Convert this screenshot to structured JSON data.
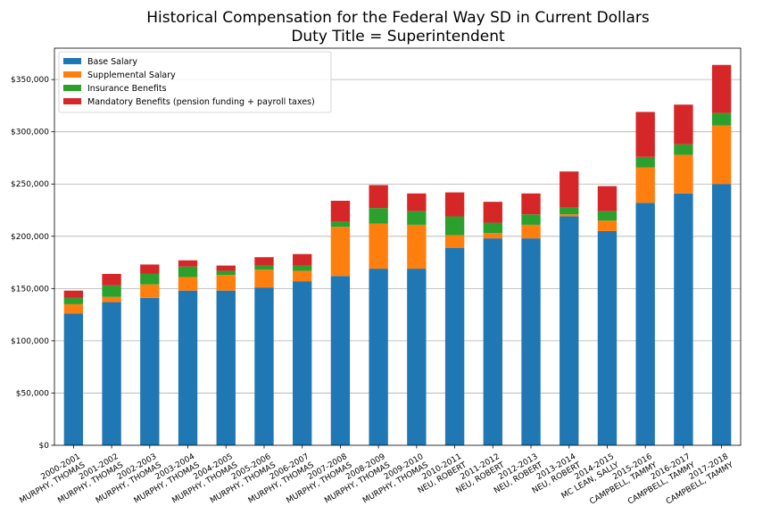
{
  "chart_data": {
    "type": "bar",
    "stacked": true,
    "title": "Historical Compensation for the Federal Way SD in Current Dollars",
    "subtitle": "Duty Title = Superintendent",
    "xlabel": "",
    "ylabel": "",
    "ylim": [
      0,
      380000
    ],
    "yticks": [
      0,
      50000,
      100000,
      150000,
      200000,
      250000,
      300000,
      350000
    ],
    "ytick_labels": [
      "$0",
      "$50,000",
      "$100,000",
      "$150,000",
      "$200,000",
      "$250,000",
      "$300,000",
      "$350,000"
    ],
    "grid": "horizontal",
    "legend_position": "top-left",
    "categories": [
      [
        "2000-2001",
        "MURPHY, THOMAS"
      ],
      [
        "2001-2002",
        "MURPHY, THOMAS"
      ],
      [
        "2002-2003",
        "MURPHY, THOMAS"
      ],
      [
        "2003-2004",
        "MURPHY, THOMAS"
      ],
      [
        "2004-2005",
        "MURPHY, THOMAS"
      ],
      [
        "2005-2006",
        "MURPHY, THOMAS"
      ],
      [
        "2006-2007",
        "MURPHY, THOMAS"
      ],
      [
        "2007-2008",
        "MURPHY, THOMAS"
      ],
      [
        "2008-2009",
        "MURPHY, THOMAS"
      ],
      [
        "2009-2010",
        "MURPHY, THOMAS"
      ],
      [
        "2010-2011",
        "NEU, ROBERT"
      ],
      [
        "2011-2012",
        "NEU, ROBERT"
      ],
      [
        "2012-2013",
        "NEU, ROBERT"
      ],
      [
        "2013-2014",
        "NEU, ROBERT"
      ],
      [
        "2014-2015",
        "MC LEAN, SALLY"
      ],
      [
        "2015-2016",
        "CAMPBELL, TAMMY"
      ],
      [
        "2016-2017",
        "CAMPBELL, TAMMY"
      ],
      [
        "2017-2018",
        "CAMPBELL, TAMMY"
      ]
    ],
    "series": [
      {
        "name": "Base Salary",
        "color": "#1f77b4",
        "values": [
          126000,
          137000,
          141000,
          148000,
          148000,
          151000,
          157000,
          162000,
          169000,
          169000,
          189000,
          198000,
          198000,
          219000,
          205000,
          232000,
          241000,
          250000
        ]
      },
      {
        "name": "Supplemental Salary",
        "color": "#ff7f0e",
        "values": [
          9000,
          5000,
          13000,
          13000,
          15000,
          17000,
          10000,
          47000,
          43000,
          42000,
          12000,
          5000,
          13000,
          2000,
          10000,
          34000,
          37000,
          56000
        ]
      },
      {
        "name": "Insurance Benefits",
        "color": "#2ca02c",
        "values": [
          6000,
          11000,
          10000,
          10000,
          4000,
          4000,
          5000,
          5000,
          15000,
          13000,
          18000,
          10000,
          10000,
          7000,
          9000,
          10000,
          10000,
          12000
        ]
      },
      {
        "name": "Mandatory Benefits (pension funding + payroll taxes)",
        "color": "#d62728",
        "values": [
          7000,
          11000,
          9000,
          6000,
          5000,
          8000,
          11000,
          20000,
          22000,
          17000,
          23000,
          20000,
          20000,
          34000,
          24000,
          43000,
          38000,
          46000
        ]
      }
    ]
  }
}
